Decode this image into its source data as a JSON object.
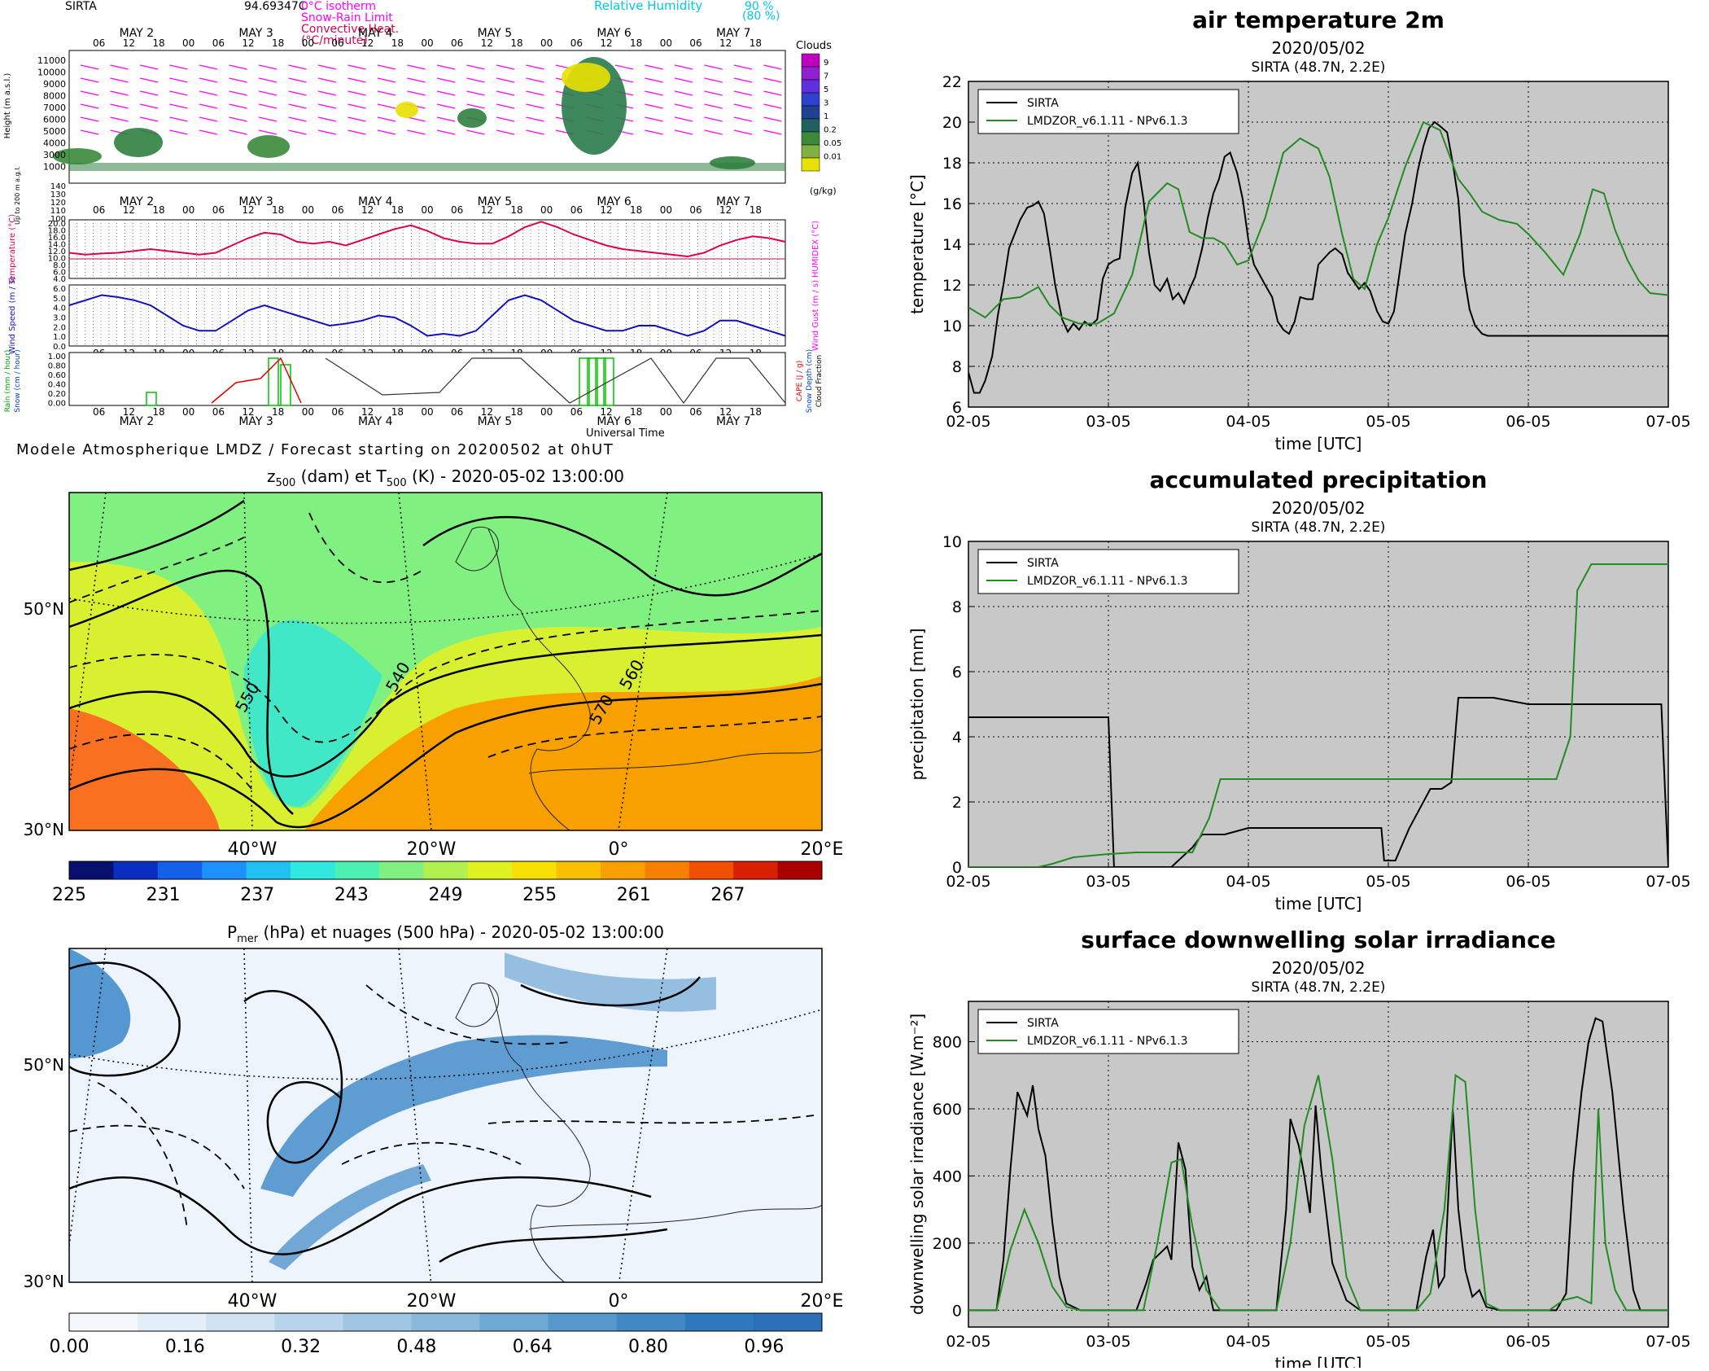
{
  "meteogram": {
    "station": "SIRTA",
    "value": "94.69347C",
    "legend_left": [
      "0°C isotherm",
      "Snow-Rain Limit",
      "Convective Heat.",
      "(°C/minute)"
    ],
    "legend_right": [
      "Relative Humidity",
      "90 %",
      "(80 %)"
    ],
    "day_labels": [
      "MAY 2",
      "MAY 3",
      "MAY 4",
      "MAY 5",
      "MAY 6",
      "MAY 7"
    ],
    "hour_labels": [
      "06",
      "12",
      "18",
      "00"
    ],
    "height_label": "Height (m a.s.l.)",
    "height_ticks": [
      "11000",
      "10000",
      "9000",
      "8000",
      "7000",
      "6000",
      "5000",
      "4000",
      "3000",
      "1000"
    ],
    "low_label": "Up to 200 m a.g.l.",
    "low_ticks": [
      "140",
      "130",
      "120",
      "110",
      "100"
    ],
    "clouds_title": "Clouds",
    "clouds_ticks": [
      "9",
      "7",
      "5",
      "3",
      "1",
      "0.2",
      "0.05",
      "0.01"
    ],
    "clouds_unit": "(g/kg)",
    "temp_label": "Temperature (°C)",
    "temp_right": "HUMIDEX (°C)",
    "temp_ticks": [
      "20.0",
      "18.0",
      "16.0",
      "14.0",
      "12.0",
      "10.0",
      "8.0",
      "6.0",
      "4.0"
    ],
    "temp_series": [
      11,
      10.5,
      10.8,
      11,
      11.5,
      12,
      11.5,
      11,
      10.5,
      11,
      13,
      15,
      16.5,
      16,
      14,
      13.5,
      14,
      13,
      14.5,
      16,
      17.5,
      18.5,
      17,
      15,
      14,
      13.5,
      13.5,
      15.5,
      18,
      19.5,
      18,
      16,
      14.5,
      13,
      12,
      11.5,
      11,
      10.5,
      10,
      11,
      13,
      14.5,
      15.5,
      15,
      14
    ],
    "wind_label": "Wind Speed (m / s)",
    "wind_right": "Wind Gust (m / s)",
    "wind_ticks": [
      "6.0",
      "5.0",
      "4.0",
      "3.0",
      "2.0",
      "1.0",
      "0.0"
    ],
    "wind_series": [
      4,
      4.5,
      5,
      4.8,
      4.5,
      4,
      3,
      2,
      1.5,
      1.5,
      2.5,
      3.5,
      4,
      3.5,
      3,
      2.5,
      2,
      2.2,
      2.5,
      3,
      2.8,
      2,
      1,
      1.2,
      1,
      1.5,
      3,
      4.5,
      5,
      4.5,
      3.5,
      2.5,
      2,
      1.5,
      1.5,
      2,
      2,
      1.5,
      1,
      1.5,
      2.5,
      2.5,
      2,
      1.5,
      1
    ],
    "rain_label": "Rain (mm / hour)",
    "snow_label": "Snow (cm / hour)",
    "cape_label": "CAPE (J / g)",
    "snowdepth_label": "Snow Depth (cm)",
    "cloudfrac_label": "Cloud Fraction",
    "precip_ticks": [
      "1.00",
      "0.80",
      "0.60",
      "0.40",
      "0.20",
      "0.00"
    ],
    "axis_title": "Universal Time",
    "caption": "Modele Atmospherique LMDZ / Forecast starting on 20200502 at 0hUT"
  },
  "map1": {
    "title_parts": [
      "z",
      "500",
      " (dam) et T",
      "500",
      " (K) - 2020-05-02 13:00:00"
    ],
    "lat_labels": [
      "50°N",
      "30°N"
    ],
    "lon_labels": [
      "40°W",
      "20°W",
      "0°",
      "20°E"
    ],
    "contour_labels": [
      "550",
      "540",
      "560",
      "570"
    ],
    "colorbar_ticks": [
      "225",
      "231",
      "237",
      "243",
      "249",
      "255",
      "261",
      "267"
    ],
    "colorbar_colors": [
      "#08106e",
      "#0a2fc0",
      "#1460e8",
      "#1e90ff",
      "#22c0f0",
      "#30e8e0",
      "#4cf0b0",
      "#80f080",
      "#b0f050",
      "#e0f020",
      "#f8e000",
      "#f8c000",
      "#f8a000",
      "#f88000",
      "#f05000",
      "#d82000",
      "#a80000"
    ]
  },
  "map2": {
    "title_parts": [
      "P",
      "mer",
      " (hPa) et nuages (500 hPa) - 2020-05-02 13:00:00"
    ],
    "lat_labels": [
      "50°N",
      "30°N"
    ],
    "lon_labels": [
      "40°W",
      "20°W",
      "0°",
      "20°E"
    ],
    "colorbar_ticks": [
      "0.00",
      "0.16",
      "0.32",
      "0.48",
      "0.64",
      "0.80",
      "0.96"
    ]
  },
  "chart_data": [
    {
      "type": "line",
      "title": "air temperature 2m",
      "subtitle": "2020/05/02",
      "subtitle2": "SIRTA (48.7N, 2.2E)",
      "xlabel": "time [UTC]",
      "ylabel": "temperature [°C]",
      "xlim": [
        0,
        5
      ],
      "ylim": [
        6,
        22
      ],
      "yticks": [
        6,
        8,
        10,
        12,
        14,
        16,
        18,
        20,
        22
      ],
      "x_ticklabels": [
        "02-05",
        "03-05",
        "04-05",
        "05-05",
        "06-05",
        "07-05"
      ],
      "grid": true,
      "legend": "top-left",
      "series": [
        {
          "name": "SIRTA",
          "color": "#000000",
          "x": [
            0,
            0.04,
            0.08,
            0.12,
            0.17,
            0.21,
            0.25,
            0.29,
            0.33,
            0.37,
            0.42,
            0.46,
            0.5,
            0.54,
            0.58,
            0.62,
            0.67,
            0.71,
            0.75,
            0.79,
            0.83,
            0.87,
            0.92,
            0.96,
            1.0,
            1.04,
            1.08,
            1.12,
            1.17,
            1.21,
            1.25,
            1.29,
            1.33,
            1.37,
            1.42,
            1.46,
            1.5,
            1.54,
            1.58,
            1.62,
            1.67,
            1.71,
            1.75,
            1.79,
            1.83,
            1.87,
            1.92,
            1.96,
            2.0,
            2.04,
            2.08,
            2.12,
            2.17,
            2.21,
            2.25,
            2.29,
            2.33,
            2.37,
            2.42,
            2.46,
            2.5,
            2.54,
            2.58,
            2.62,
            2.67,
            2.71,
            2.75,
            2.79,
            2.83,
            2.87,
            2.92,
            2.96,
            3.0,
            3.04,
            3.08,
            3.12,
            3.17,
            3.21,
            3.25,
            3.29,
            3.33,
            3.37,
            3.42,
            3.46,
            3.5,
            3.54,
            3.58,
            3.62,
            3.67,
            3.71,
            3.75,
            3.79,
            3.83,
            3.87,
            3.92,
            3.96,
            4.0,
            4.04,
            4.08,
            4.12,
            4.17,
            4.21,
            4.25,
            4.29,
            4.33,
            4.37,
            4.42,
            4.46,
            4.5,
            4.54,
            4.58,
            4.62,
            4.67,
            4.71,
            4.75,
            4.79,
            4.83,
            4.87,
            4.92,
            4.96,
            5.0
          ],
          "y": [
            7.7,
            6.7,
            6.7,
            7.3,
            8.5,
            10.5,
            12.0,
            13.8,
            14.5,
            15.2,
            15.8,
            15.9,
            16.1,
            15.5,
            13.8,
            12.0,
            10.3,
            9.7,
            10.1,
            9.8,
            10.2,
            10.0,
            10.3,
            12.3,
            13.0,
            13.2,
            13.3,
            15.8,
            17.5,
            18.0,
            16.2,
            13.6,
            12.0,
            11.7,
            12.3,
            11.3,
            11.6,
            11.1,
            11.8,
            12.4,
            13.8,
            15.3,
            16.5,
            17.2,
            18.3,
            18.5,
            17.5,
            16.2,
            14.2,
            13.0,
            12.5,
            12.0,
            11.4,
            10.2,
            9.8,
            9.6,
            10.2,
            11.4,
            11.3,
            11.3,
            13.0,
            13.3,
            13.6,
            13.8,
            13.5,
            12.6,
            12.2,
            11.8,
            12.1,
            11.7,
            10.7,
            10.2,
            10.1,
            10.7,
            12.6,
            14.5,
            16.0,
            17.6,
            18.8,
            19.7,
            20.0,
            19.8,
            19.5,
            18.0,
            16.2,
            12.5,
            10.8,
            10.0,
            9.6,
            9.5,
            9.5,
            9.5,
            9.5,
            9.5,
            9.5,
            9.5,
            9.5,
            9.5,
            9.5,
            9.5,
            9.5,
            9.5,
            9.5,
            9.5,
            9.5,
            9.5,
            9.5,
            9.5,
            9.5,
            9.5,
            9.5,
            9.5,
            9.5,
            9.5,
            9.5,
            9.5,
            9.5,
            9.5,
            9.5,
            9.5,
            9.5
          ]
        },
        {
          "name": "LMDZOR_v6.1.11 - NPv6.1.3",
          "color": "#228b22",
          "x": [
            0,
            0.12,
            0.25,
            0.37,
            0.5,
            0.58,
            0.67,
            0.79,
            0.92,
            1.04,
            1.17,
            1.29,
            1.42,
            1.5,
            1.58,
            1.67,
            1.75,
            1.83,
            1.92,
            2.0,
            2.12,
            2.25,
            2.37,
            2.5,
            2.58,
            2.67,
            2.75,
            2.83,
            2.92,
            3.0,
            3.12,
            3.25,
            3.37,
            3.5,
            3.58,
            3.67,
            3.79,
            3.92,
            4.0,
            4.12,
            4.25,
            4.37,
            4.46,
            4.54,
            4.62,
            4.71,
            4.79,
            4.87,
            5.0
          ],
          "y": [
            10.9,
            10.4,
            11.3,
            11.4,
            11.9,
            11.0,
            10.4,
            10.1,
            10.1,
            10.6,
            12.5,
            16.1,
            17.0,
            16.7,
            14.6,
            14.3,
            14.3,
            14.0,
            13.0,
            13.2,
            15.3,
            18.5,
            19.2,
            18.7,
            17.3,
            14.5,
            12.3,
            11.8,
            14.0,
            15.3,
            17.8,
            20.0,
            19.6,
            17.2,
            16.5,
            15.6,
            15.2,
            15.0,
            14.5,
            13.6,
            12.5,
            14.5,
            16.7,
            16.5,
            14.7,
            13.2,
            12.2,
            11.6,
            11.5
          ]
        }
      ]
    },
    {
      "type": "line",
      "title": "accumulated precipitation",
      "subtitle": "2020/05/02",
      "subtitle2": "SIRTA (48.7N, 2.2E)",
      "xlabel": "time [UTC]",
      "ylabel": "precipitation [mm]",
      "xlim": [
        0,
        5
      ],
      "ylim": [
        0,
        10
      ],
      "yticks": [
        0,
        2,
        4,
        6,
        8,
        10
      ],
      "x_ticklabels": [
        "02-05",
        "03-05",
        "04-05",
        "05-05",
        "06-05",
        "07-05"
      ],
      "grid": true,
      "legend": "top-left",
      "series": [
        {
          "name": "SIRTA",
          "color": "#000000",
          "x": [
            0,
            1.0,
            1.04,
            1.45,
            1.6,
            1.67,
            1.83,
            2.0,
            2.83,
            2.95,
            2.97,
            3.05,
            3.15,
            3.3,
            3.38,
            3.45,
            3.5,
            3.75,
            4.0,
            4.25,
            4.5,
            4.75,
            4.95,
            5.0
          ],
          "y": [
            4.6,
            4.6,
            0,
            0,
            0.6,
            1.0,
            1.0,
            1.2,
            1.2,
            1.2,
            0.2,
            0.2,
            1.2,
            2.4,
            2.4,
            2.6,
            5.2,
            5.2,
            5.0,
            5.0,
            5.0,
            5.0,
            5.0,
            0
          ]
        },
        {
          "name": "LMDZOR_v6.1.11 - NPv6.1.3",
          "color": "#228b22",
          "x": [
            0,
            0.3,
            0.5,
            0.6,
            0.75,
            1.0,
            1.2,
            1.6,
            1.72,
            1.8,
            2.0,
            2.5,
            3.0,
            3.5,
            4.0,
            4.2,
            4.3,
            4.35,
            4.45,
            4.5,
            4.75,
            5.0
          ],
          "y": [
            0,
            0,
            0,
            0.1,
            0.3,
            0.4,
            0.45,
            0.45,
            1.5,
            2.7,
            2.7,
            2.7,
            2.7,
            2.7,
            2.7,
            2.7,
            4.0,
            8.5,
            9.3,
            9.3,
            9.3,
            9.3
          ]
        }
      ]
    },
    {
      "type": "line",
      "title": "surface downwelling solar irradiance",
      "subtitle": "2020/05/02",
      "subtitle2": "SIRTA (48.7N, 2.2E)",
      "xlabel": "time [UTC]",
      "ylabel": "downwelling solar irradiance [W.m⁻²]",
      "xlim": [
        0,
        5
      ],
      "ylim": [
        -50,
        920
      ],
      "yticks": [
        0,
        200,
        400,
        600,
        800
      ],
      "x_ticklabels": [
        "02-05",
        "03-05",
        "04-05",
        "05-05",
        "06-05",
        "07-05"
      ],
      "grid": true,
      "legend": "top-left",
      "series": [
        {
          "name": "SIRTA",
          "color": "#000000",
          "x": [
            0,
            0.2,
            0.25,
            0.3,
            0.35,
            0.42,
            0.46,
            0.5,
            0.55,
            0.6,
            0.65,
            0.7,
            0.8,
            1.2,
            1.27,
            1.32,
            1.37,
            1.42,
            1.45,
            1.5,
            1.55,
            1.6,
            1.65,
            1.7,
            1.75,
            2.2,
            2.27,
            2.3,
            2.36,
            2.4,
            2.44,
            2.48,
            2.52,
            2.6,
            2.7,
            2.8,
            3.2,
            3.27,
            3.32,
            3.36,
            3.4,
            3.46,
            3.5,
            3.55,
            3.6,
            3.65,
            3.7,
            3.8,
            4.2,
            4.27,
            4.32,
            4.38,
            4.43,
            4.48,
            4.53,
            4.6,
            4.68,
            4.75,
            4.8,
            4.9,
            5.0
          ],
          "y": [
            0,
            0,
            150,
            420,
            650,
            580,
            670,
            540,
            460,
            260,
            100,
            20,
            0,
            0,
            80,
            150,
            170,
            190,
            150,
            500,
            420,
            130,
            60,
            100,
            0,
            0,
            300,
            570,
            490,
            400,
            290,
            610,
            420,
            140,
            30,
            0,
            0,
            160,
            240,
            70,
            100,
            600,
            300,
            120,
            40,
            60,
            10,
            0,
            0,
            50,
            400,
            650,
            800,
            870,
            860,
            650,
            300,
            60,
            0,
            0,
            0
          ]
        },
        {
          "name": "LMDZOR_v6.1.11 - NPv6.1.3",
          "color": "#228b22",
          "x": [
            0,
            0.2,
            0.3,
            0.4,
            0.5,
            0.6,
            0.7,
            0.8,
            1.25,
            1.35,
            1.45,
            1.52,
            1.6,
            1.7,
            1.8,
            2.2,
            2.3,
            2.4,
            2.5,
            2.6,
            2.7,
            2.8,
            3.2,
            3.3,
            3.4,
            3.48,
            3.55,
            3.62,
            3.7,
            3.8,
            4.15,
            4.25,
            4.35,
            4.45,
            4.5,
            4.55,
            4.62,
            4.7,
            4.8,
            5.0
          ],
          "y": [
            0,
            0,
            180,
            300,
            200,
            70,
            10,
            0,
            0,
            200,
            440,
            450,
            250,
            60,
            0,
            0,
            200,
            550,
            700,
            450,
            100,
            0,
            0,
            50,
            300,
            700,
            680,
            300,
            20,
            0,
            0,
            30,
            40,
            20,
            600,
            200,
            60,
            0,
            0,
            0
          ]
        }
      ]
    }
  ]
}
